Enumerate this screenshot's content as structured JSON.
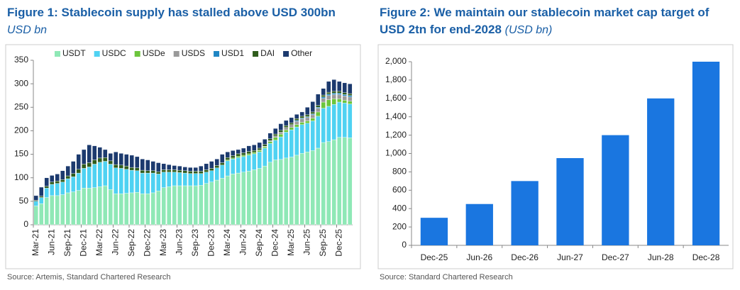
{
  "chart_data": [
    {
      "type": "bar",
      "stacked": true,
      "title": "Figure 1: Stablecoin supply has stalled above USD 300bn",
      "subtitle": "USD bn",
      "source": "Source: Artemis, Standard Chartered Research",
      "legend": "top",
      "grid": false,
      "categories": [
        "Mar-21",
        null,
        null,
        "Jun-21",
        null,
        null,
        "Sep-21",
        null,
        null,
        "Dec-21",
        null,
        null,
        "Mar-22",
        null,
        null,
        "Jun-22",
        null,
        null,
        "Sep-22",
        null,
        null,
        "Dec-22",
        null,
        null,
        "Mar-23",
        null,
        null,
        "Jun-23",
        null,
        null,
        "Sep-23",
        null,
        null,
        "Dec-23",
        null,
        null,
        "Mar-24",
        null,
        null,
        "Jun-24",
        null,
        null,
        "Sep-24",
        null,
        null,
        "Dec-24",
        null,
        null,
        "Mar-25",
        null,
        null,
        "Jun-25",
        null,
        null,
        "Sep-25",
        null,
        null,
        "Dec-25",
        null,
        null
      ],
      "ylim": [
        0,
        350
      ],
      "yticks": [
        0,
        50,
        100,
        150,
        200,
        250,
        300,
        350
      ],
      "series": [
        {
          "name": "USDT",
          "color": "#8fe8b6",
          "values": [
            40,
            45,
            58,
            62,
            62,
            64,
            68,
            70,
            73,
            78,
            78,
            79,
            81,
            83,
            75,
            66,
            66,
            67,
            68,
            69,
            66,
            66,
            68,
            72,
            79,
            81,
            83,
            83,
            83,
            83,
            83,
            84,
            88,
            91,
            95,
            99,
            104,
            108,
            110,
            112,
            114,
            117,
            120,
            125,
            133,
            138,
            139,
            142,
            144,
            148,
            152,
            155,
            158,
            163,
            175,
            177,
            181,
            186,
            186,
            185
          ]
        },
        {
          "name": "USDC",
          "color": "#4fd2f2",
          "values": [
            10,
            13,
            20,
            24,
            26,
            27,
            30,
            32,
            37,
            42,
            45,
            50,
            52,
            52,
            54,
            55,
            54,
            51,
            48,
            46,
            44,
            44,
            42,
            36,
            33,
            31,
            29,
            28,
            27,
            26,
            26,
            25,
            24,
            24,
            26,
            28,
            32,
            32,
            33,
            33,
            34,
            34,
            35,
            38,
            40,
            42,
            48,
            55,
            58,
            60,
            61,
            61,
            63,
            68,
            73,
            75,
            75,
            75,
            73,
            72
          ]
        },
        {
          "name": "USDe",
          "color": "#6cc53c",
          "values": [
            0,
            0,
            0,
            0,
            0,
            0,
            0,
            0,
            0,
            0,
            0,
            0,
            0,
            0,
            0,
            0,
            0,
            0,
            0,
            0,
            0,
            0,
            0,
            0,
            0,
            0,
            0,
            0,
            0,
            0,
            0,
            0,
            0,
            0,
            0,
            0,
            2,
            2,
            3,
            3,
            3,
            3,
            3,
            3,
            4,
            6,
            6,
            5,
            5,
            5,
            5,
            5,
            6,
            9,
            13,
            14,
            12,
            7,
            6,
            6
          ]
        },
        {
          "name": "USDS",
          "color": "#9a9a9a",
          "values": [
            0,
            0,
            0,
            0,
            0,
            0,
            0,
            0,
            0,
            0,
            0,
            0,
            0,
            0,
            0,
            0,
            0,
            0,
            0,
            0,
            0,
            0,
            0,
            0,
            0,
            0,
            0,
            0,
            0,
            0,
            0,
            0,
            0,
            0,
            0,
            0,
            0,
            0,
            0,
            0,
            0,
            0,
            1,
            1,
            2,
            3,
            4,
            5,
            6,
            7,
            7,
            7,
            7,
            8,
            8,
            9,
            9,
            9,
            9,
            9
          ]
        },
        {
          "name": "USD1",
          "color": "#1f86c4",
          "values": [
            0,
            0,
            0,
            0,
            0,
            0,
            0,
            0,
            0,
            0,
            0,
            0,
            0,
            0,
            0,
            0,
            0,
            0,
            0,
            0,
            0,
            0,
            0,
            0,
            0,
            0,
            0,
            0,
            0,
            0,
            0,
            0,
            0,
            0,
            0,
            0,
            0,
            0,
            0,
            0,
            0,
            0,
            0,
            0,
            0,
            0,
            0,
            0,
            0,
            2,
            2,
            2,
            2,
            2,
            3,
            3,
            3,
            3,
            3,
            3
          ]
        },
        {
          "name": "DAI",
          "color": "#2f5c1c",
          "values": [
            2,
            3,
            4,
            5,
            5,
            5,
            6,
            7,
            8,
            9,
            9,
            9,
            9,
            8,
            7,
            7,
            7,
            7,
            6,
            6,
            6,
            5,
            5,
            5,
            5,
            5,
            5,
            5,
            5,
            5,
            5,
            5,
            5,
            5,
            5,
            5,
            5,
            5,
            5,
            5,
            5,
            4,
            4,
            4,
            4,
            4,
            4,
            4,
            4,
            4,
            4,
            4,
            4,
            4,
            4,
            4,
            4,
            4,
            4,
            4
          ]
        },
        {
          "name": "Other",
          "color": "#1c3a6e",
          "values": [
            10,
            19,
            18,
            14,
            15,
            19,
            21,
            26,
            32,
            31,
            38,
            30,
            23,
            17,
            16,
            27,
            25,
            25,
            26,
            24,
            24,
            23,
            20,
            19,
            13,
            11,
            9,
            9,
            8,
            8,
            8,
            11,
            13,
            15,
            14,
            18,
            12,
            11,
            9,
            10,
            12,
            12,
            12,
            11,
            12,
            12,
            14,
            11,
            11,
            9,
            9,
            16,
            22,
            24,
            14,
            23,
            25,
            21,
            21,
            21
          ]
        }
      ]
    },
    {
      "type": "bar",
      "title": "Figure 2: We maintain our stablecoin market cap target of USD 2tn for end-2028",
      "subtitle": "(USD bn)",
      "source": "Source: Standard Chartered Research",
      "grid": false,
      "color": "#1a76e0",
      "categories": [
        "Dec-25",
        "Jun-26",
        "Dec-26",
        "Jun-27",
        "Dec-27",
        "Jun-28",
        "Dec-28"
      ],
      "values": [
        300,
        450,
        700,
        950,
        1200,
        1600,
        2000
      ],
      "ylim": [
        0,
        2000
      ],
      "yticks": [
        0,
        200,
        400,
        600,
        800,
        {
          "value": 1000,
          "label": "1,000"
        },
        {
          "value": 1200,
          "label": "1,200"
        },
        {
          "value": 1400,
          "label": "1,400"
        },
        {
          "value": 1600,
          "label": "1,600"
        },
        {
          "value": 1800,
          "label": "1,800"
        },
        {
          "value": 2000,
          "label": "2,000"
        }
      ]
    }
  ]
}
